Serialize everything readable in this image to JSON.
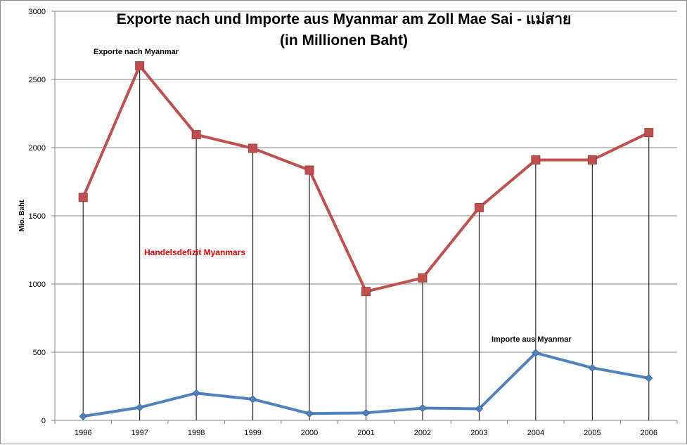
{
  "chart_data": {
    "type": "line",
    "title": "Exporte nach und Importe aus Myanmar am Zoll Mae Sai - แม่สาย",
    "subtitle": "(in Millionen Baht)",
    "xlabel": "",
    "ylabel": "Mio. Baht",
    "ylim": [
      0,
      3000
    ],
    "yticks": [
      "0",
      "500",
      "1000",
      "1500",
      "2000",
      "2500",
      "3000"
    ],
    "categories": [
      "1996",
      "1997",
      "1998",
      "1999",
      "2000",
      "2001",
      "2002",
      "2003",
      "2004",
      "2005",
      "2006"
    ],
    "grid": true,
    "legend": "none",
    "series": [
      {
        "name": "Exporte nach Myanmar",
        "color": "#c0504d",
        "marker": "square",
        "values": [
          1635,
          2600,
          2095,
          1995,
          1835,
          945,
          1045,
          1560,
          1910,
          1910,
          2110
        ]
      },
      {
        "name": "Importe aus Myanmar",
        "color": "#4f81bd",
        "marker": "diamond",
        "values": [
          30,
          95,
          200,
          155,
          50,
          55,
          90,
          85,
          495,
          385,
          310
        ]
      }
    ],
    "drop_lines": true,
    "annotations": {
      "exports": "Exporte nach Myanmar",
      "imports": "Importe aus Myanmar",
      "deficit": "Handelsdefizit Myanmars"
    }
  }
}
